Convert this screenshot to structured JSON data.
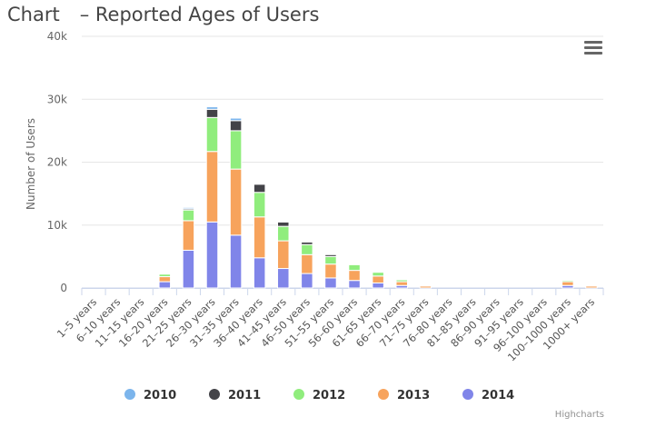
{
  "header": {
    "title_left": "Chart",
    "title_right": "– Reported Ages of Users"
  },
  "menu": {
    "icon": "hamburger-menu-icon"
  },
  "credits": "Highcharts",
  "colors": {
    "2010": "#7cb5ec",
    "2011": "#434348",
    "2012": "#90ed7d",
    "2013": "#f7a35c",
    "2014": "#8085e9"
  },
  "chart_data": {
    "type": "bar",
    "stacked": true,
    "title": "Chart – Reported Ages of Users",
    "ylabel": "Number of Users",
    "xlabel": "",
    "ylim": [
      0,
      40000
    ],
    "yticks": [
      {
        "value": 0,
        "label": "0"
      },
      {
        "value": 10000,
        "label": "10k"
      },
      {
        "value": 20000,
        "label": "20k"
      },
      {
        "value": 30000,
        "label": "30k"
      },
      {
        "value": 40000,
        "label": "40k"
      }
    ],
    "grid": true,
    "legend_position": "bottom",
    "categories": [
      "1–5 years",
      "6–10 years",
      "11–15 years",
      "16–20 years",
      "21–25 years",
      "26–30 years",
      "31–35 years",
      "36–40 years",
      "41–45 years",
      "46–50 years",
      "51–55 years",
      "56–60 years",
      "61–65 years",
      "66–70 years",
      "71–75 years",
      "76–80 years",
      "81–85 years",
      "86–90 years",
      "91–95 years",
      "96–100 years",
      "100–1000 years",
      "1000+ years"
    ],
    "series": [
      {
        "name": "2014",
        "color": "#8085e9",
        "values": [
          0,
          0,
          0,
          1000,
          6000,
          10500,
          8400,
          4800,
          3100,
          2300,
          1600,
          1200,
          800,
          400,
          0,
          0,
          0,
          0,
          0,
          0,
          400,
          0
        ]
      },
      {
        "name": "2013",
        "color": "#f7a35c",
        "values": [
          0,
          0,
          0,
          800,
          4700,
          11200,
          10500,
          6500,
          4400,
          3000,
          2200,
          1600,
          1100,
          600,
          300,
          0,
          0,
          0,
          0,
          0,
          600,
          300
        ]
      },
      {
        "name": "2012",
        "color": "#90ed7d",
        "values": [
          0,
          0,
          0,
          400,
          1700,
          5400,
          6100,
          3900,
          2300,
          1600,
          1200,
          900,
          600,
          300,
          0,
          0,
          0,
          0,
          0,
          0,
          200,
          0
        ]
      },
      {
        "name": "2011",
        "color": "#434348",
        "values": [
          0,
          0,
          0,
          0,
          200,
          1300,
          1600,
          1300,
          700,
          400,
          300,
          0,
          0,
          0,
          0,
          0,
          0,
          0,
          0,
          0,
          0,
          0
        ]
      },
      {
        "name": "2010",
        "color": "#7cb5ec",
        "values": [
          0,
          0,
          0,
          0,
          200,
          400,
          400,
          100,
          100,
          0,
          0,
          0,
          0,
          0,
          0,
          0,
          0,
          0,
          0,
          0,
          0,
          0
        ]
      }
    ],
    "legend_order": [
      "2010",
      "2011",
      "2012",
      "2013",
      "2014"
    ]
  }
}
